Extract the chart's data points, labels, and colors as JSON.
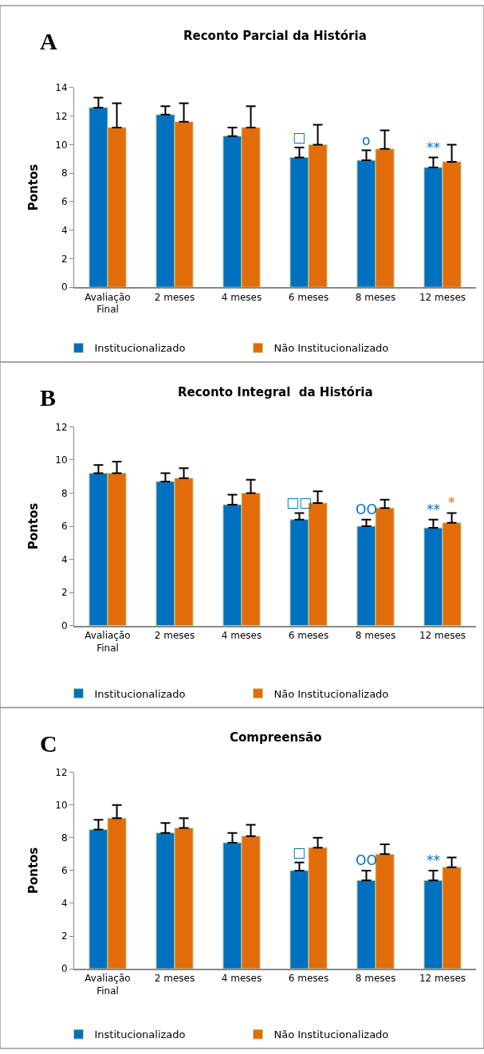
{
  "chart_data": [
    {
      "type": "bar",
      "title": "Reconto Parcial da História",
      "ylabel": "Pontos",
      "categories": [
        "Avaliação Final",
        "2 meses",
        "4 meses",
        "6 meses",
        "8 meses",
        "12 meses"
      ],
      "ylim": [
        0,
        14
      ],
      "yticks": [
        0,
        2,
        4,
        6,
        8,
        10,
        12,
        14
      ],
      "legend": "bottom",
      "series": [
        {
          "name": "Institucionalizado",
          "color": "#0070c0",
          "values": [
            12.6,
            12.1,
            10.6,
            9.1,
            8.9,
            8.4
          ],
          "errors": [
            [
              12.6,
              13.3
            ],
            [
              12.1,
              12.7
            ],
            [
              10.6,
              11.2
            ],
            [
              9.1,
              9.8
            ],
            [
              8.9,
              9.6
            ],
            [
              8.4,
              9.1
            ]
          ]
        },
        {
          "name": "Não Institucionalizado",
          "color": "#e36c0a",
          "values": [
            11.2,
            11.6,
            11.2,
            10.0,
            9.7,
            8.8
          ],
          "errors": [
            [
              11.2,
              12.9
            ],
            [
              11.6,
              12.9
            ],
            [
              11.2,
              12.7
            ],
            [
              10.0,
              11.4
            ],
            [
              9.7,
              11.0
            ],
            [
              8.8,
              10.0
            ]
          ]
        }
      ],
      "annotations": [
        "A",
        {
          "text": "□",
          "x": "6 meses",
          "y": 9.8
        },
        {
          "text": "o",
          "x": "8 meses",
          "y": 9.6
        },
        {
          "text": "**",
          "x": "12 meses",
          "y": 8.4
        }
      ]
    },
    {
      "type": "bar",
      "title": "Reconto Integral  da História",
      "ylabel": "Pontos",
      "categories": [
        "Avaliação Final",
        "2 meses",
        "4 meses",
        "6 meses",
        "8 meses",
        "12 meses"
      ],
      "ylim": [
        0,
        12
      ],
      "yticks": [
        0,
        2,
        4,
        6,
        8,
        10,
        12
      ],
      "legend": "bottom",
      "series": [
        {
          "name": "Institucionalizado",
          "color": "#0070c0",
          "values": [
            9.2,
            8.7,
            7.3,
            6.4,
            6.0,
            5.9
          ],
          "errors": [
            [
              9.2,
              9.7
            ],
            [
              8.7,
              9.2
            ],
            [
              7.3,
              7.9
            ],
            [
              6.4,
              6.8
            ],
            [
              6.0,
              6.4
            ],
            [
              5.9,
              6.4
            ]
          ]
        },
        {
          "name": "Não Institucionalizado",
          "color": "#e36c0a",
          "values": [
            9.2,
            8.9,
            8.0,
            7.4,
            7.1,
            6.2
          ],
          "errors": [
            [
              9.2,
              9.9
            ],
            [
              8.9,
              9.5
            ],
            [
              8.0,
              8.8
            ],
            [
              7.4,
              8.1
            ],
            [
              7.1,
              7.6
            ],
            [
              6.2,
              6.8
            ]
          ]
        }
      ],
      "annotations": [
        "B",
        {
          "text": "□□",
          "x": "6 meses",
          "y": 6.8
        },
        {
          "text": "OO",
          "x": "8 meses",
          "y": 6.4
        },
        {
          "text": "**",
          "x": "12 meses",
          "y": 6.4
        },
        {
          "text": "*",
          "x": "12 meses",
          "y": 6.2
        }
      ]
    },
    {
      "type": "bar",
      "title": "Compreensão",
      "ylabel": "Pontos",
      "categories": [
        "Avaliação Final",
        "2 meses",
        "4 meses",
        "6 meses",
        "8 meses",
        "12 meses"
      ],
      "ylim": [
        0,
        12
      ],
      "yticks": [
        0,
        2,
        4,
        6,
        8,
        10,
        12
      ],
      "legend": "bottom",
      "series": [
        {
          "name": "Institucionalizado",
          "color": "#0070c0",
          "values": [
            8.5,
            8.3,
            7.7,
            6.0,
            5.4,
            5.4
          ],
          "errors": [
            [
              8.5,
              9.1
            ],
            [
              8.3,
              8.9
            ],
            [
              7.7,
              8.3
            ],
            [
              6.0,
              6.5
            ],
            [
              5.4,
              6.0
            ],
            [
              5.4,
              6.0
            ]
          ]
        },
        {
          "name": "Não Institucionalizado",
          "color": "#e36c0a",
          "values": [
            9.2,
            8.6,
            8.1,
            7.4,
            7.0,
            6.2
          ],
          "errors": [
            [
              9.2,
              10.0
            ],
            [
              8.6,
              9.2
            ],
            [
              8.1,
              8.8
            ],
            [
              7.4,
              8.0
            ],
            [
              7.0,
              7.6
            ],
            [
              6.2,
              6.8
            ]
          ]
        }
      ],
      "annotations": [
        "C",
        {
          "text": "□",
          "x": "6 meses",
          "y": 6.5
        },
        {
          "text": "OO",
          "x": "8 meses",
          "y": 6.0
        },
        {
          "text": "**",
          "x": "12 meses",
          "y": 6.0
        }
      ]
    }
  ]
}
